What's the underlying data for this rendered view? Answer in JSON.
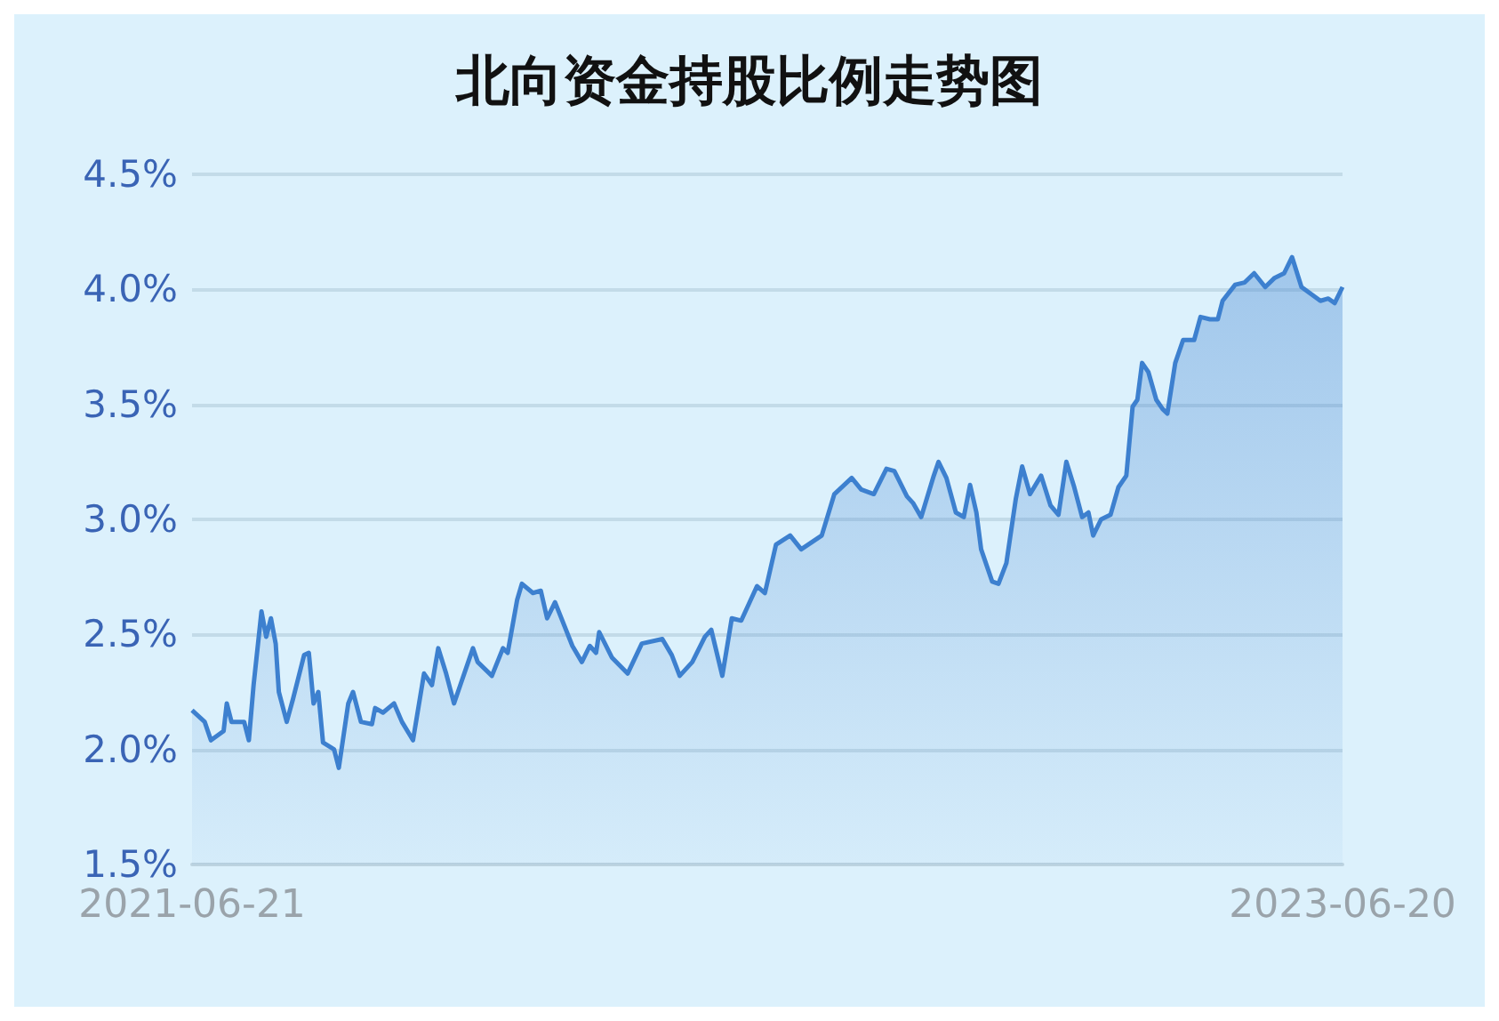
{
  "chart_data": {
    "type": "area",
    "title": "北向资金持股比例走势图",
    "x": [
      "2021-06-21",
      "2021-06-29",
      "2021-07-03",
      "2021-07-11",
      "2021-07-13",
      "2021-07-16",
      "2021-07-24",
      "2021-07-27",
      "2021-07-30",
      "2021-08-04",
      "2021-08-07",
      "2021-08-10",
      "2021-08-13",
      "2021-08-15",
      "2021-08-20",
      "2021-08-24",
      "2021-08-31",
      "2021-09-03",
      "2021-09-06",
      "2021-09-09",
      "2021-09-12",
      "2021-09-19",
      "2021-09-22",
      "2021-09-28",
      "2021-10-01",
      "2021-10-06",
      "2021-10-13",
      "2021-10-15",
      "2021-10-20",
      "2021-10-27",
      "2021-11-01",
      "2021-11-08",
      "2021-11-15",
      "2021-11-20",
      "2021-11-24",
      "2021-11-29",
      "2021-12-04",
      "2021-12-08",
      "2021-12-16",
      "2021-12-19",
      "2021-12-28",
      "2022-01-04",
      "2022-01-07",
      "2022-01-13",
      "2022-01-16",
      "2022-01-23",
      "2022-01-28",
      "2022-02-01",
      "2022-02-06",
      "2022-02-17",
      "2022-02-23",
      "2022-02-28",
      "2022-03-04",
      "2022-03-06",
      "2022-03-14",
      "2022-03-24",
      "2022-04-02",
      "2022-04-15",
      "2022-04-21",
      "2022-04-26",
      "2022-05-04",
      "2022-05-12",
      "2022-05-16",
      "2022-05-23",
      "2022-05-29",
      "2022-06-04",
      "2022-06-14",
      "2022-06-19",
      "2022-06-26",
      "2022-07-05",
      "2022-07-12",
      "2022-07-25",
      "2022-08-02",
      "2022-08-13",
      "2022-08-19",
      "2022-08-27",
      "2022-09-04",
      "2022-09-09",
      "2022-09-17",
      "2022-09-21",
      "2022-09-26",
      "2022-10-04",
      "2022-10-07",
      "2022-10-12",
      "2022-10-18",
      "2022-10-23",
      "2022-10-27",
      "2022-10-31",
      "2022-11-03",
      "2022-11-10",
      "2022-11-14",
      "2022-11-19",
      "2022-11-25",
      "2022-11-29",
      "2022-12-04",
      "2022-12-11",
      "2022-12-17",
      "2022-12-22",
      "2022-12-27",
      "2023-01-01",
      "2023-01-06",
      "2023-01-10",
      "2023-01-13",
      "2023-01-18",
      "2023-01-24",
      "2023-01-29",
      "2023-02-03",
      "2023-02-07",
      "2023-02-10",
      "2023-02-13",
      "2023-02-17",
      "2023-02-22",
      "2023-02-26",
      "2023-03-01",
      "2023-03-06",
      "2023-03-11",
      "2023-03-18",
      "2023-03-22",
      "2023-03-28",
      "2023-04-02",
      "2023-04-05",
      "2023-04-13",
      "2023-04-19",
      "2023-04-25",
      "2023-05-02",
      "2023-05-08",
      "2023-05-14",
      "2023-05-19",
      "2023-05-25",
      "2023-06-06",
      "2023-06-11",
      "2023-06-15",
      "2023-06-20"
    ],
    "series": [
      {
        "color": "#3d80cf",
        "values": [
          2.17,
          2.12,
          2.04,
          2.08,
          2.2,
          2.12,
          2.12,
          2.04,
          2.28,
          2.6,
          2.49,
          2.57,
          2.46,
          2.25,
          2.12,
          2.22,
          2.41,
          2.42,
          2.2,
          2.25,
          2.03,
          2.0,
          1.92,
          2.2,
          2.25,
          2.12,
          2.11,
          2.18,
          2.16,
          2.2,
          2.12,
          2.04,
          2.33,
          2.28,
          2.44,
          2.33,
          2.2,
          2.28,
          2.44,
          2.38,
          2.32,
          2.44,
          2.42,
          2.65,
          2.72,
          2.68,
          2.69,
          2.57,
          2.64,
          2.45,
          2.38,
          2.45,
          2.42,
          2.51,
          2.4,
          2.33,
          2.46,
          2.48,
          2.41,
          2.32,
          2.38,
          2.49,
          2.52,
          2.32,
          2.57,
          2.56,
          2.71,
          2.68,
          2.89,
          2.93,
          2.87,
          2.93,
          3.11,
          3.18,
          3.13,
          3.11,
          3.22,
          3.21,
          3.1,
          3.07,
          3.01,
          3.19,
          3.25,
          3.18,
          3.03,
          3.01,
          3.15,
          3.03,
          2.87,
          2.73,
          2.72,
          2.81,
          3.09,
          3.23,
          3.11,
          3.19,
          3.06,
          3.02,
          3.25,
          3.14,
          3.01,
          3.03,
          2.93,
          3.0,
          3.02,
          3.14,
          3.19,
          3.49,
          3.52,
          3.68,
          3.64,
          3.52,
          3.48,
          3.46,
          3.68,
          3.78,
          3.78,
          3.88,
          3.87,
          3.87,
          3.95,
          4.02,
          4.03,
          4.07,
          4.01,
          4.05,
          4.07,
          4.14,
          4.01,
          3.95,
          3.96,
          3.94,
          4.01
        ]
      }
    ],
    "xlim": [
      "2021-06-21",
      "2023-06-20"
    ],
    "xticks": [
      "2021-06-21",
      "2023-06-20"
    ],
    "ylim": [
      1.5,
      4.5
    ],
    "yticks": [
      {
        "value": 1.5,
        "label": "1.5%"
      },
      {
        "value": 2.0,
        "label": "2.0%"
      },
      {
        "value": 2.5,
        "label": "2.5%"
      },
      {
        "value": 3.0,
        "label": "3.0%"
      },
      {
        "value": 3.5,
        "label": "3.5%"
      },
      {
        "value": 4.0,
        "label": "4.0%"
      },
      {
        "value": 4.5,
        "label": "4.5%"
      }
    ],
    "grid": "y"
  }
}
